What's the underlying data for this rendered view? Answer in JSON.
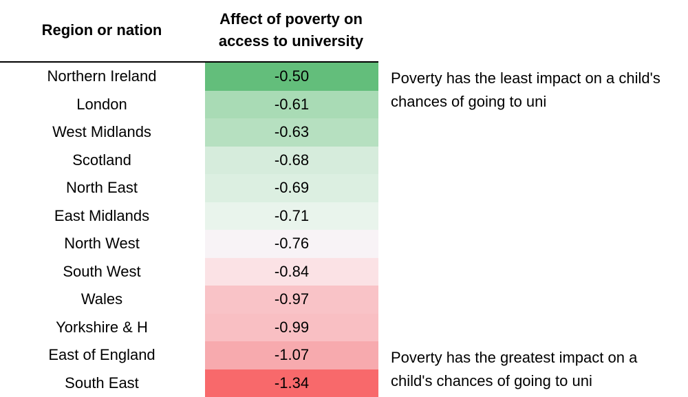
{
  "chart_data": {
    "type": "table",
    "columns": [
      "Region or nation",
      "Affect of poverty on access to university"
    ],
    "rows": [
      {
        "region": "Northern Ireland",
        "value": "-0.50",
        "color": "#63be7b"
      },
      {
        "region": "London",
        "value": "-0.61",
        "color": "#a9dbb5"
      },
      {
        "region": "West Midlands",
        "value": "-0.63",
        "color": "#b6e0c0"
      },
      {
        "region": "Scotland",
        "value": "-0.68",
        "color": "#d6ecdc"
      },
      {
        "region": "North East",
        "value": "-0.69",
        "color": "#dcefe1"
      },
      {
        "region": "East Midlands",
        "value": "-0.71",
        "color": "#e9f4ec"
      },
      {
        "region": "North West",
        "value": "-0.76",
        "color": "#f8f3f6"
      },
      {
        "region": "South West",
        "value": "-0.84",
        "color": "#fbe2e5"
      },
      {
        "region": "Wales",
        "value": "-0.97",
        "color": "#f9c3c7"
      },
      {
        "region": "Yorkshire & H",
        "value": "-0.99",
        "color": "#f9bfc3"
      },
      {
        "region": "East of England",
        "value": "-1.07",
        "color": "#f7aaae"
      },
      {
        "region": "South East",
        "value": "-1.34",
        "color": "#f8696b"
      }
    ]
  },
  "header": {
    "region_label": "Region or nation",
    "value_label": "Affect of poverty on access to university"
  },
  "annotations": {
    "top": "Poverty has the least impact on a child's chances of going to uni",
    "bottom": "Poverty has the greatest impact on a child's chances of going to uni"
  }
}
